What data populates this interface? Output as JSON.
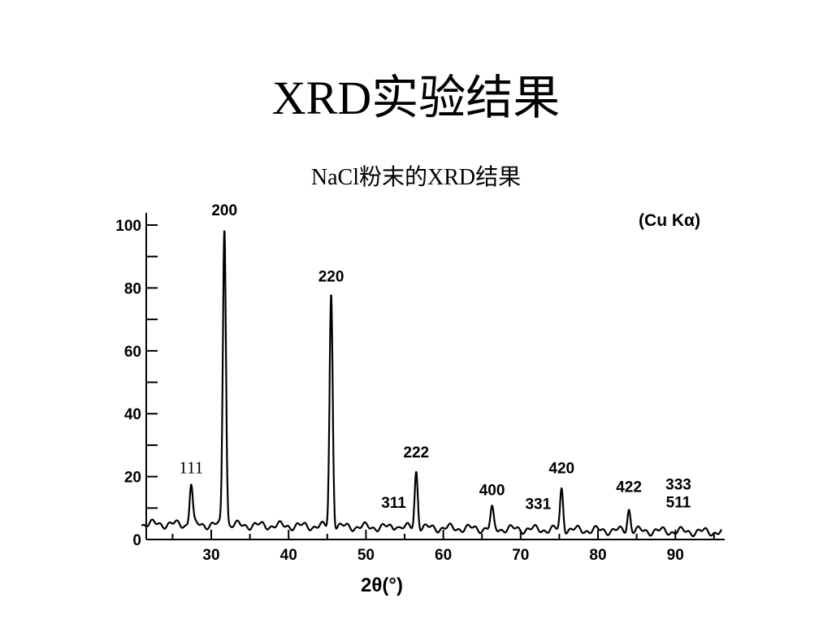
{
  "slide": {
    "title": "XRD实验结果",
    "subtitle": "NaCl粉末的XRD结果"
  },
  "chart_data": {
    "type": "line",
    "title": "",
    "xlabel": "2θ(°)",
    "ylabel": "",
    "annotation": "(Cu Kα)",
    "xlim": [
      21,
      96
    ],
    "ylim": [
      0,
      100
    ],
    "xticks": [
      "30",
      "40",
      "50",
      "60",
      "70",
      "80",
      "90"
    ],
    "xtick_values": [
      30,
      40,
      50,
      60,
      70,
      80,
      90
    ],
    "yticks": [
      "0",
      "20",
      "40",
      "60",
      "80",
      "100"
    ],
    "ytick_values": [
      0,
      20,
      40,
      60,
      80,
      100
    ],
    "grid": false,
    "baseline": 5,
    "peaks": [
      {
        "hkl": "111",
        "x": 27.4,
        "y": 18
      },
      {
        "hkl": "200",
        "x": 31.7,
        "y": 100
      },
      {
        "hkl": "220",
        "x": 45.5,
        "y": 79
      },
      {
        "hkl": "311",
        "x": 53.9,
        "y": 6
      },
      {
        "hkl": "222",
        "x": 56.5,
        "y": 23
      },
      {
        "hkl": "400",
        "x": 66.3,
        "y": 11
      },
      {
        "hkl": "331",
        "x": 73.1,
        "y": 4
      },
      {
        "hkl": "420",
        "x": 75.3,
        "y": 18
      },
      {
        "hkl": "422",
        "x": 84.0,
        "y": 12
      },
      {
        "hkl": "333\n511",
        "x": 90.4,
        "y": 3
      }
    ]
  }
}
